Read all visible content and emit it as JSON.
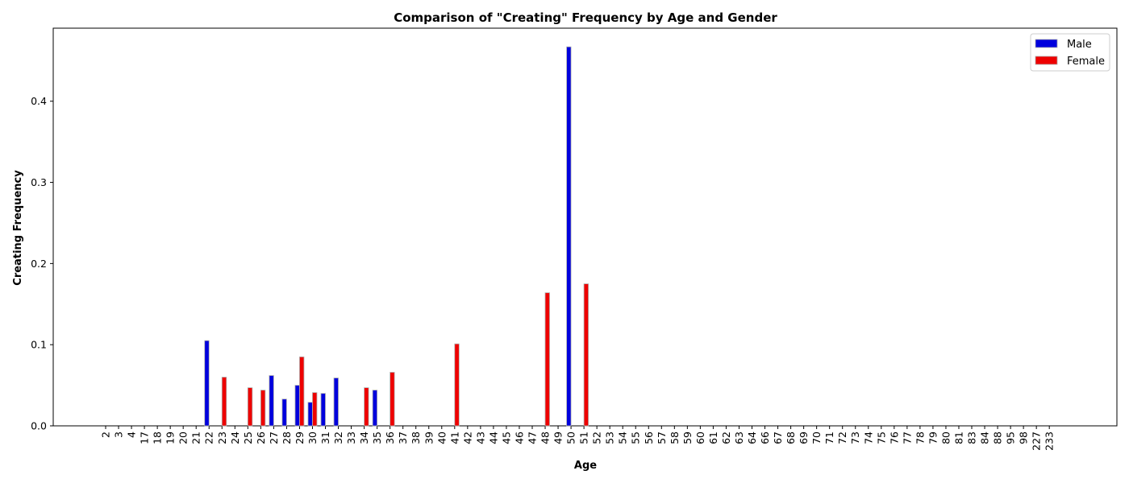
{
  "chart_data": {
    "type": "bar",
    "title": "Comparison of \"Creating\" Frequency by Age and Gender",
    "xlabel": "Age",
    "ylabel": "Creating Frequency",
    "ylim": [
      0,
      0.49
    ],
    "yticks": [
      "0.0",
      "0.1",
      "0.2",
      "0.3",
      "0.4"
    ],
    "legend_position": "top-right",
    "categories": [
      "2",
      "3",
      "4",
      "17",
      "18",
      "19",
      "20",
      "21",
      "22",
      "23",
      "24",
      "25",
      "26",
      "27",
      "28",
      "29",
      "30",
      "31",
      "32",
      "33",
      "34",
      "35",
      "36",
      "37",
      "38",
      "39",
      "40",
      "41",
      "42",
      "43",
      "44",
      "45",
      "46",
      "47",
      "48",
      "49",
      "50",
      "51",
      "52",
      "53",
      "54",
      "55",
      "56",
      "57",
      "58",
      "59",
      "60",
      "61",
      "62",
      "63",
      "64",
      "66",
      "67",
      "68",
      "69",
      "70",
      "71",
      "72",
      "73",
      "74",
      "75",
      "76",
      "77",
      "78",
      "79",
      "80",
      "81",
      "83",
      "84",
      "88",
      "95",
      "98",
      "227",
      "233"
    ],
    "series": [
      {
        "name": "Male",
        "color": "#0000dd",
        "values": [
          0,
          0,
          0,
          0,
          0,
          0,
          0,
          0,
          0.105,
          0,
          0,
          0,
          0,
          0.062,
          0.033,
          0.05,
          0.029,
          0.04,
          0.059,
          0,
          0,
          0.044,
          0,
          0,
          0,
          0,
          0,
          0,
          0,
          0,
          0,
          0,
          0,
          0,
          0,
          0,
          0.467,
          0,
          0,
          0,
          0,
          0,
          0,
          0,
          0,
          0,
          0,
          0,
          0,
          0,
          0,
          0,
          0,
          0,
          0,
          0,
          0,
          0,
          0,
          0,
          0,
          0,
          0,
          0,
          0,
          0,
          0,
          0,
          0,
          0,
          0,
          0,
          0,
          0
        ]
      },
      {
        "name": "Female",
        "color": "#ee0000",
        "values": [
          0,
          0,
          0,
          0,
          0,
          0,
          0,
          0,
          0,
          0.06,
          0,
          0.047,
          0.044,
          0,
          0,
          0.085,
          0.041,
          0,
          0,
          0,
          0.047,
          0,
          0.066,
          0,
          0,
          0,
          0,
          0.101,
          0,
          0,
          0,
          0,
          0,
          0,
          0.164,
          0,
          0,
          0.175,
          0,
          0,
          0,
          0,
          0,
          0,
          0,
          0,
          0,
          0,
          0,
          0,
          0,
          0,
          0,
          0,
          0,
          0,
          0,
          0,
          0,
          0,
          0,
          0,
          0,
          0,
          0,
          0,
          0,
          0,
          0,
          0,
          0,
          0,
          0,
          0
        ]
      }
    ]
  }
}
